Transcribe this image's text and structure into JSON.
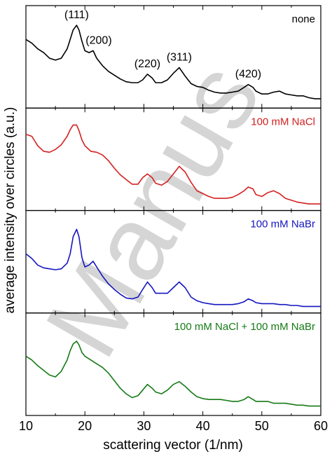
{
  "chart_data": {
    "type": "line",
    "xlabel": "scattering vector (1/nm)",
    "ylabel": "average intensity over circles (a.u.)",
    "xlim": [
      10,
      60
    ],
    "xticks": [
      10,
      20,
      30,
      40,
      50,
      60
    ],
    "grid": false,
    "layout": "4 vertically stacked panels sharing the x axis",
    "peak_labels": [
      {
        "text": "(111)",
        "x": 18.6
      },
      {
        "text": "(200)",
        "x": 21.4
      },
      {
        "text": "(220)",
        "x": 30.6
      },
      {
        "text": "(311)",
        "x": 36.0
      },
      {
        "text": "(420)",
        "x": 47.7
      }
    ],
    "panels": [
      {
        "label": "none",
        "color": "#000000",
        "ylim": [
          0,
          1
        ],
        "x": [
          10,
          11,
          12,
          13,
          14,
          15,
          16,
          17,
          17.5,
          18,
          18.6,
          19,
          19.5,
          20,
          20.7,
          21.4,
          22,
          23,
          24,
          25,
          26,
          27,
          28,
          29,
          29.8,
          30.6,
          31.4,
          32,
          33,
          34,
          35,
          36,
          37,
          38,
          39,
          40,
          41,
          42,
          43,
          44,
          45,
          46,
          47,
          47.7,
          48.5,
          49,
          50,
          51,
          52,
          53,
          54,
          55,
          56,
          57,
          58,
          59,
          60
        ],
        "values": [
          0.7,
          0.66,
          0.6,
          0.56,
          0.5,
          0.48,
          0.5,
          0.6,
          0.7,
          0.8,
          0.85,
          0.8,
          0.68,
          0.58,
          0.56,
          0.58,
          0.5,
          0.42,
          0.36,
          0.32,
          0.28,
          0.25,
          0.24,
          0.24,
          0.27,
          0.33,
          0.29,
          0.24,
          0.24,
          0.27,
          0.34,
          0.4,
          0.31,
          0.23,
          0.2,
          0.19,
          0.16,
          0.14,
          0.13,
          0.13,
          0.14,
          0.15,
          0.19,
          0.22,
          0.19,
          0.15,
          0.12,
          0.12,
          0.14,
          0.15,
          0.12,
          0.11,
          0.1,
          0.1,
          0.08,
          0.07,
          0.07
        ]
      },
      {
        "label": "100 mM NaCl",
        "color": "#d42020",
        "ylim": [
          0,
          1
        ],
        "x": [
          10,
          11,
          12,
          13,
          14,
          15,
          16,
          17,
          17.5,
          18,
          18.6,
          19,
          19.5,
          20,
          21,
          22,
          23,
          24,
          25,
          26,
          27,
          28,
          29,
          29.8,
          30.6,
          31.4,
          32,
          33,
          34,
          35,
          36,
          37,
          38,
          39,
          40,
          41,
          42,
          43,
          44,
          45,
          46,
          47,
          47.7,
          48.5,
          49,
          50,
          51,
          52,
          53,
          54,
          55,
          56,
          57,
          58,
          59,
          60
        ],
        "values": [
          0.78,
          0.76,
          0.66,
          0.6,
          0.59,
          0.62,
          0.67,
          0.76,
          0.83,
          0.88,
          0.88,
          0.82,
          0.72,
          0.66,
          0.6,
          0.59,
          0.56,
          0.5,
          0.42,
          0.35,
          0.3,
          0.25,
          0.25,
          0.32,
          0.36,
          0.32,
          0.26,
          0.24,
          0.28,
          0.36,
          0.44,
          0.38,
          0.27,
          0.18,
          0.15,
          0.12,
          0.1,
          0.1,
          0.1,
          0.11,
          0.14,
          0.18,
          0.22,
          0.2,
          0.14,
          0.12,
          0.16,
          0.18,
          0.15,
          0.1,
          0.08,
          0.06,
          0.05,
          0.04,
          0.04,
          0.04
        ]
      },
      {
        "label": "100 mM NaBr",
        "color": "#1515c0",
        "ylim": [
          0,
          1
        ],
        "x": [
          10,
          11,
          12,
          13,
          14,
          15,
          16,
          17,
          17.5,
          18,
          18.6,
          19,
          19.5,
          20,
          20.7,
          21.4,
          22,
          23,
          24,
          25,
          26,
          27,
          28,
          29,
          29.8,
          30.6,
          31.4,
          32,
          33,
          34,
          35,
          36,
          37,
          38,
          39,
          40,
          41,
          42,
          43,
          44,
          45,
          46,
          47,
          47.7,
          48.5,
          49,
          50,
          51,
          52,
          53,
          54,
          55,
          56,
          57,
          58,
          59,
          60
        ],
        "values": [
          0.6,
          0.55,
          0.48,
          0.45,
          0.44,
          0.43,
          0.44,
          0.5,
          0.6,
          0.78,
          0.86,
          0.78,
          0.56,
          0.46,
          0.48,
          0.52,
          0.46,
          0.36,
          0.28,
          0.22,
          0.17,
          0.13,
          0.12,
          0.14,
          0.22,
          0.3,
          0.24,
          0.18,
          0.18,
          0.18,
          0.24,
          0.3,
          0.24,
          0.14,
          0.1,
          0.08,
          0.07,
          0.06,
          0.06,
          0.06,
          0.06,
          0.07,
          0.09,
          0.12,
          0.1,
          0.08,
          0.07,
          0.07,
          0.07,
          0.06,
          0.06,
          0.05,
          0.05,
          0.04,
          0.04,
          0.04,
          0.04
        ]
      },
      {
        "label": "100 mM NaCl + 100 mM NaBr",
        "color": "#167a16",
        "ylim": [
          0,
          1
        ],
        "x": [
          10,
          11,
          12,
          13,
          14,
          15,
          16,
          17,
          17.5,
          18,
          18.6,
          19,
          19.5,
          20,
          21,
          22,
          23,
          24,
          25,
          26,
          27,
          28,
          29,
          29.8,
          30.6,
          31.4,
          32,
          33,
          34,
          35,
          36,
          37,
          38,
          39,
          40,
          41,
          42,
          43,
          44,
          45,
          46,
          47,
          47.7,
          48.5,
          49,
          50,
          51,
          52,
          53,
          54,
          55,
          56,
          57,
          58,
          59,
          60
        ],
        "values": [
          0.6,
          0.56,
          0.5,
          0.45,
          0.4,
          0.38,
          0.44,
          0.56,
          0.66,
          0.73,
          0.76,
          0.72,
          0.64,
          0.6,
          0.56,
          0.52,
          0.48,
          0.42,
          0.34,
          0.26,
          0.2,
          0.16,
          0.18,
          0.24,
          0.3,
          0.26,
          0.22,
          0.2,
          0.24,
          0.3,
          0.33,
          0.28,
          0.22,
          0.17,
          0.15,
          0.14,
          0.14,
          0.14,
          0.13,
          0.12,
          0.12,
          0.14,
          0.17,
          0.14,
          0.12,
          0.12,
          0.12,
          0.1,
          0.1,
          0.1,
          0.09,
          0.08,
          0.08,
          0.07,
          0.07,
          0.07
        ]
      }
    ]
  },
  "watermark": {
    "text": "Manus",
    "color": "#c8c8c8"
  }
}
